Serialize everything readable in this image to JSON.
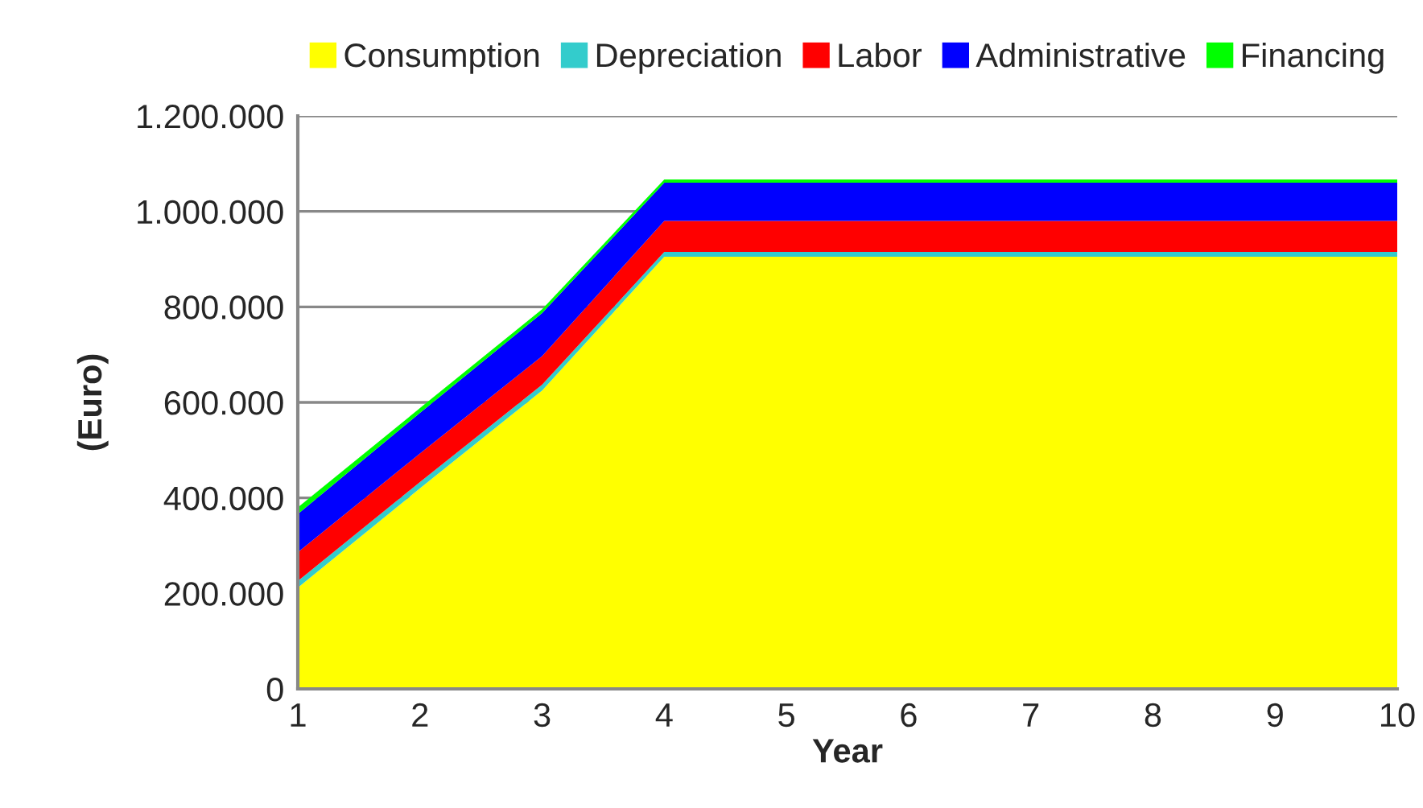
{
  "chart_data": {
    "type": "area",
    "stacked": true,
    "xlabel": "Year",
    "ylabel": "(Euro)",
    "x": [
      1,
      2,
      3,
      4,
      5,
      6,
      7,
      8,
      9,
      10
    ],
    "series": [
      {
        "name": "Consumption",
        "color": "#ffff00",
        "values": [
          212000,
          420000,
          625000,
          905000,
          905000,
          905000,
          905000,
          905000,
          905000,
          905000
        ]
      },
      {
        "name": "Depreciation",
        "color": "#33cccc",
        "values": [
          14000,
          13000,
          12000,
          10000,
          10000,
          10000,
          10000,
          10000,
          10000,
          10000
        ]
      },
      {
        "name": "Labor",
        "color": "#ff0000",
        "values": [
          60000,
          60000,
          60000,
          65000,
          65000,
          65000,
          65000,
          65000,
          65000,
          65000
        ]
      },
      {
        "name": "Administrative",
        "color": "#0000ff",
        "values": [
          80000,
          85000,
          90000,
          80000,
          80000,
          80000,
          80000,
          80000,
          80000,
          80000
        ]
      },
      {
        "name": "Financing",
        "color": "#00ff00",
        "values": [
          14000,
          10000,
          8000,
          7000,
          7000,
          7000,
          7000,
          7000,
          7000,
          7000
        ]
      }
    ],
    "xlim": [
      1,
      10
    ],
    "xticks": [
      1,
      2,
      3,
      4,
      5,
      6,
      7,
      8,
      9,
      10
    ],
    "ylim": [
      0,
      1200000
    ],
    "yticks": [
      {
        "value": 0,
        "label": "0"
      },
      {
        "value": 200000,
        "label": "200.000"
      },
      {
        "value": 400000,
        "label": "400.000"
      },
      {
        "value": 600000,
        "label": "600.000"
      },
      {
        "value": 800000,
        "label": "800.000"
      },
      {
        "value": 1000000,
        "label": "1.000.000"
      },
      {
        "value": 1200000,
        "label": "1.200.000"
      }
    ],
    "grid": "y",
    "legend": "top"
  }
}
